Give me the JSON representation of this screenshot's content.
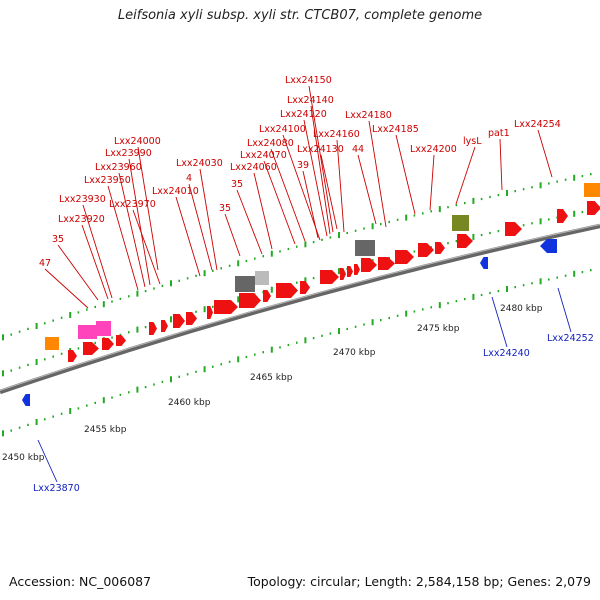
{
  "title": "Leifsonia xyli subsp. xyli str. CTCB07, complete genome",
  "footer": {
    "accession": "Accession: NC_006087",
    "summary": "Topology: circular; Length: 2,584,158 bp; Genes: 2,079"
  },
  "colors": {
    "forward_gene": "#ee1111",
    "reverse_gene": "#1133dd",
    "forward_label": "#cc0000",
    "reverse_label": "#1122bb",
    "pseudo_gene": "#666666",
    "rna_gene": "#ff44bb",
    "orange_gene": "#ff8800",
    "olive_gene": "#778822",
    "tick": "#22aa22",
    "axis": "#777777"
  },
  "scale_labels": [
    "2450 kbp",
    "2455 kbp",
    "2460 kbp",
    "2465 kbp",
    "2470 kbp",
    "2475 kbp",
    "2480 kbp"
  ],
  "forward_labels": [
    "Lxx24150",
    "Lxx24140",
    "Lxx24120",
    "Lxx24180",
    "Lxx24100",
    "Lxx24160",
    "Lxx24185",
    "Lxx24254",
    "pat1",
    "Lxx24000",
    "Lxx24080",
    "lysL",
    "Lxx23990",
    "Lxx24070",
    "Lxx24130",
    "44",
    "Lxx24200",
    "Lxx23960",
    "Lxx24030",
    "Lxx24060",
    "39",
    "Lxx23950",
    "4",
    "Lxx24010",
    "35",
    "Lxx23930",
    "Lxx23970",
    "Lxx23920",
    "35",
    "35",
    "47"
  ],
  "reverse_labels": [
    "Lxx24240",
    "Lxx24252",
    "Lxx23870"
  ]
}
